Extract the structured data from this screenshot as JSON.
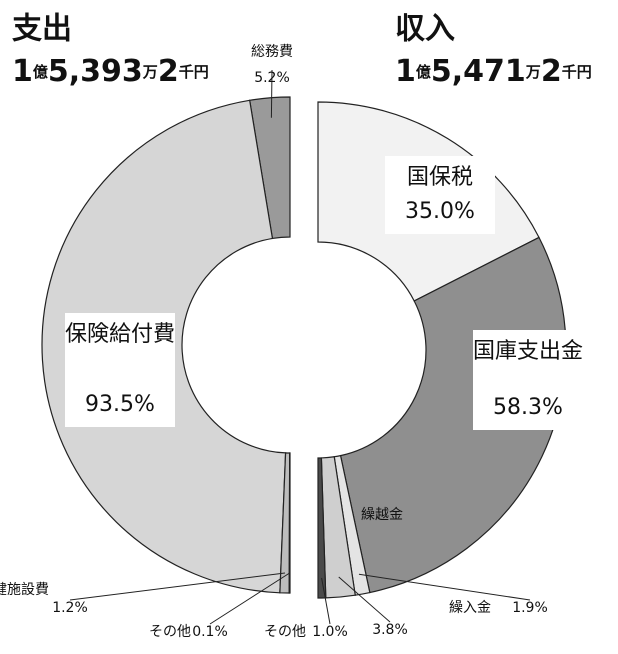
{
  "chart_data": [
    {
      "type": "half-donut",
      "side": "left",
      "title": "支出",
      "subtitle": "1億5,393万2千円",
      "categories": [
        "総務費",
        "保険給付費",
        "保健施設費",
        "その他"
      ],
      "values": [
        5.2,
        93.5,
        1.2,
        0.1
      ],
      "value_labels": [
        "5.2%",
        "93.5%",
        "1.2%",
        "0.1%"
      ],
      "colors": [
        "#9a9a9a",
        "#d6d6d6",
        "#bdbdbd",
        "#efefef"
      ]
    },
    {
      "type": "half-donut",
      "side": "right",
      "title": "収入",
      "subtitle": "1億5,471万2千円",
      "categories": [
        "国保税",
        "国庫支出金",
        "繰入金",
        "繰越金",
        "その他"
      ],
      "values": [
        35.0,
        58.3,
        1.9,
        3.8,
        1.0
      ],
      "value_labels": [
        "35.0%",
        "58.3%",
        "1.9%",
        "3.8%",
        "1.0%"
      ],
      "colors": [
        "#f2f2f2",
        "#8f8f8f",
        "#e4e4e4",
        "#cfcfcf",
        "#4a4a4a"
      ]
    }
  ]
}
